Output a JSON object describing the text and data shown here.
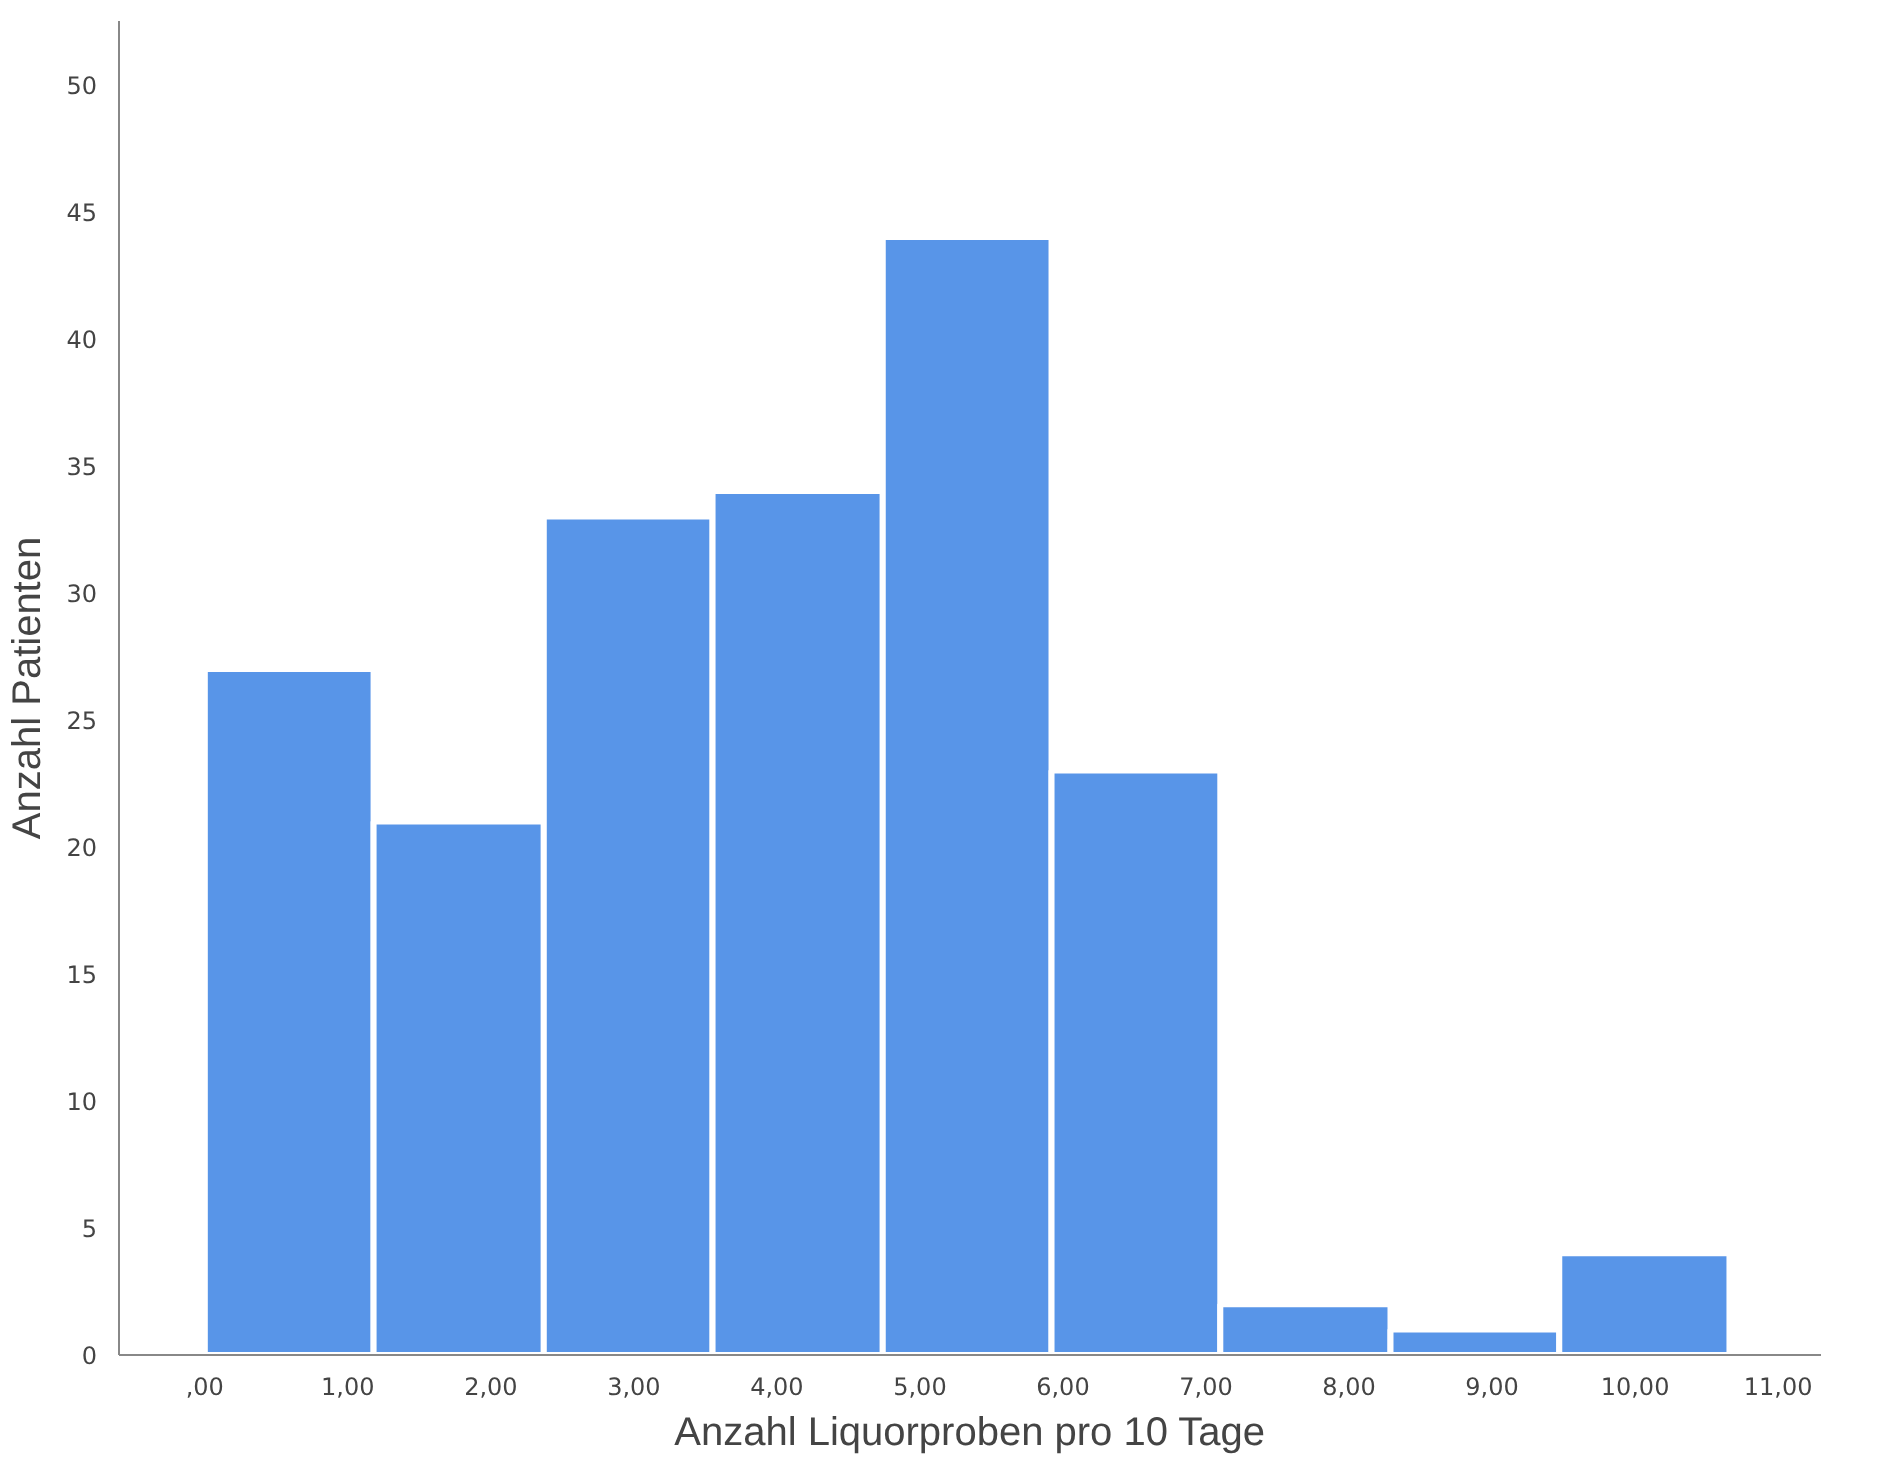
{
  "chart_data": {
    "type": "histogram",
    "xlabel": "Anzahl Liquorproben pro 10 Tage",
    "ylabel": "Anzahl Patienten",
    "bins": [
      0,
      1.18,
      2.37,
      3.55,
      4.74,
      5.92,
      7.1,
      8.29,
      9.47,
      10.66
    ],
    "values": [
      27,
      21,
      33,
      34,
      44,
      23,
      2,
      1,
      4
    ],
    "color": "#5895e8",
    "xlim": [
      -0.6,
      11.3
    ],
    "ylim": [
      0,
      52.5
    ],
    "xticks": [
      {
        "value": 0,
        "label": ",00"
      },
      {
        "value": 1,
        "label": "1,00"
      },
      {
        "value": 2,
        "label": "2,00"
      },
      {
        "value": 3,
        "label": "3,00"
      },
      {
        "value": 4,
        "label": "4,00"
      },
      {
        "value": 5,
        "label": "5,00"
      },
      {
        "value": 6,
        "label": "6,00"
      },
      {
        "value": 7,
        "label": "7,00"
      },
      {
        "value": 8,
        "label": "8,00"
      },
      {
        "value": 9,
        "label": "9,00"
      },
      {
        "value": 10,
        "label": "10,00"
      },
      {
        "value": 11,
        "label": "11,00"
      }
    ],
    "yticks": [
      0,
      5,
      10,
      15,
      20,
      25,
      30,
      35,
      40,
      45,
      50
    ],
    "grid": false
  }
}
